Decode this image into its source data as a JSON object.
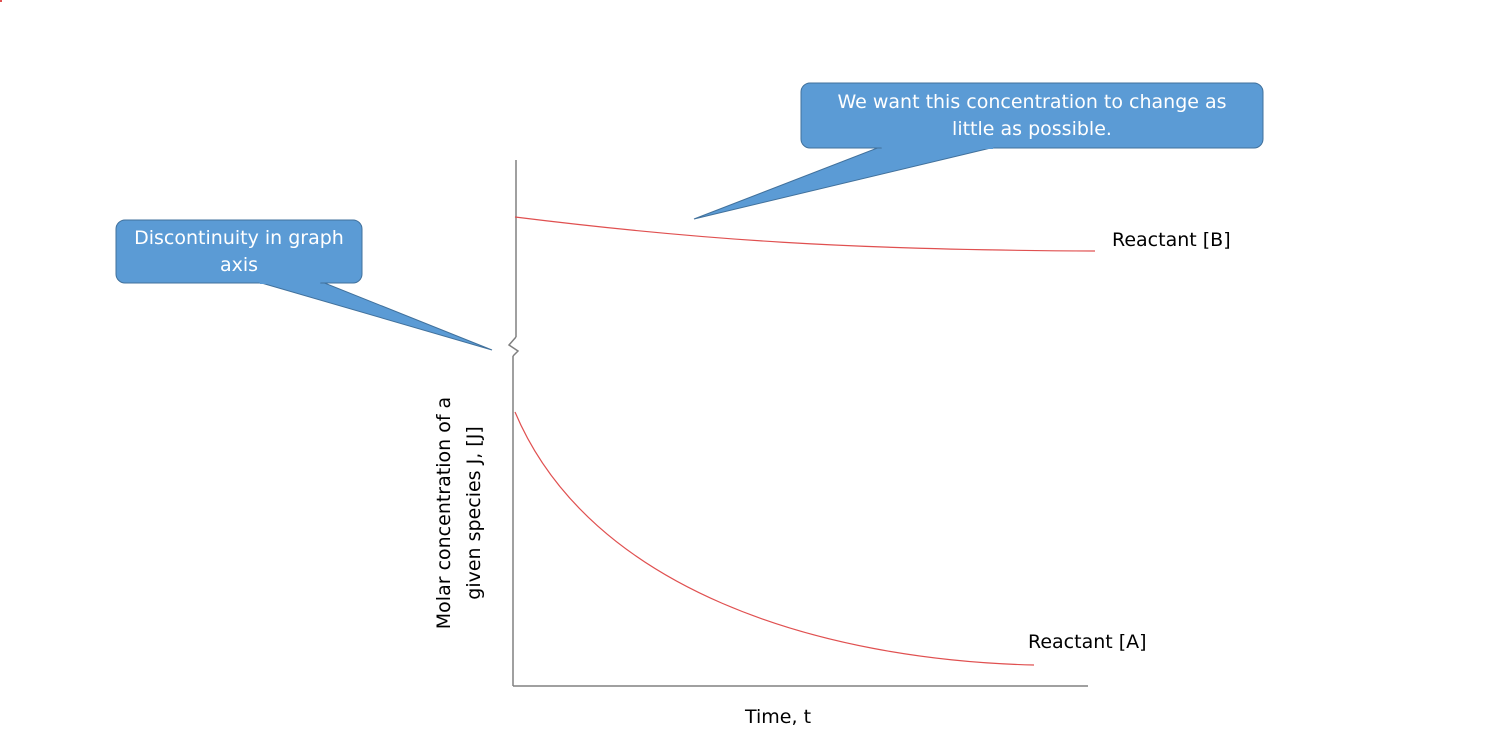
{
  "callouts": {
    "discontinuity": "Discontinuity in graph axis",
    "concentration": "We want this concentration to change as little as possible."
  },
  "chart_data": {
    "type": "line",
    "title": "",
    "xlabel": "Time, t",
    "ylabel": "Molar concentration of a given species J, [J]",
    "axis_break": "y",
    "series": [
      {
        "name": "Reactant [B]",
        "trend": "slowly decreasing, nearly constant"
      },
      {
        "name": "Reactant [A]",
        "trend": "decays exponentially toward a low value"
      }
    ]
  },
  "colors": {
    "curve": "#e05050",
    "callout_fill": "#5b9bd5",
    "callout_border": "#41719c",
    "axis": "#808080"
  }
}
